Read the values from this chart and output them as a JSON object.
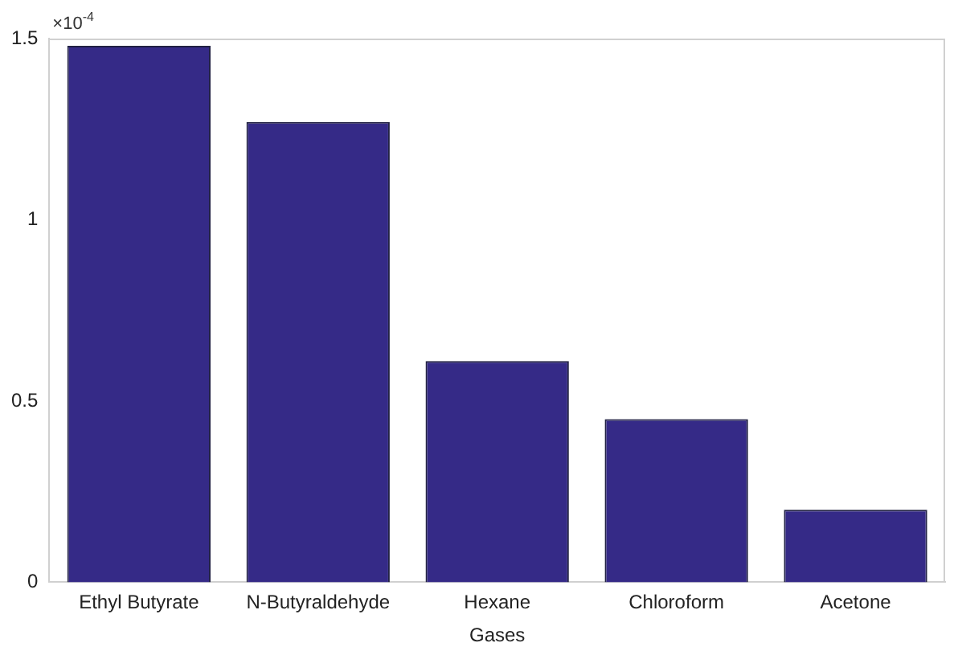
{
  "chart_data": {
    "type": "bar",
    "xlabel": "Gases",
    "categories": [
      "Ethyl Butyrate",
      "N-Butyraldehyde",
      "Hexane",
      "Chloroform",
      "Acetone"
    ],
    "values": [
      1.48,
      1.27,
      0.61,
      0.45,
      0.2
    ],
    "color": "#352a87",
    "ylim": [
      0,
      1.5
    ],
    "yticks": [
      0,
      0.5,
      1,
      1.5
    ],
    "annotations": [
      "×10$^{-4}$"
    ],
    "grid": false,
    "legend": false
  }
}
